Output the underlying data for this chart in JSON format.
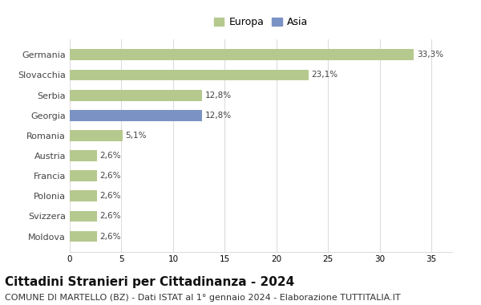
{
  "categories": [
    "Moldova",
    "Svizzera",
    "Polonia",
    "Francia",
    "Austria",
    "Romania",
    "Georgia",
    "Serbia",
    "Slovacchia",
    "Germania"
  ],
  "values": [
    2.6,
    2.6,
    2.6,
    2.6,
    2.6,
    5.1,
    12.8,
    12.8,
    23.1,
    33.3
  ],
  "labels": [
    "2,6%",
    "2,6%",
    "2,6%",
    "2,6%",
    "2,6%",
    "5,1%",
    "12,8%",
    "12,8%",
    "23,1%",
    "33,3%"
  ],
  "colors": [
    "#b5c98e",
    "#b5c98e",
    "#b5c98e",
    "#b5c98e",
    "#b5c98e",
    "#b5c98e",
    "#7b93c4",
    "#b5c98e",
    "#b5c98e",
    "#b5c98e"
  ],
  "europa_color": "#b5c98e",
  "asia_color": "#7b93c4",
  "xlim": [
    0,
    37
  ],
  "xticks": [
    0,
    5,
    10,
    15,
    20,
    25,
    30,
    35
  ],
  "grid_color": "#dddddd",
  "bg_color": "#ffffff",
  "title": "Cittadini Stranieri per Cittadinanza - 2024",
  "subtitle": "COMUNE DI MARTELLO (BZ) - Dati ISTAT al 1° gennaio 2024 - Elaborazione TUTTITALIA.IT",
  "title_fontsize": 11,
  "subtitle_fontsize": 8,
  "bar_height": 0.55,
  "legend_europa": "Europa",
  "legend_asia": "Asia",
  "label_fontsize": 7.5,
  "ytick_fontsize": 8,
  "xtick_fontsize": 7.5
}
